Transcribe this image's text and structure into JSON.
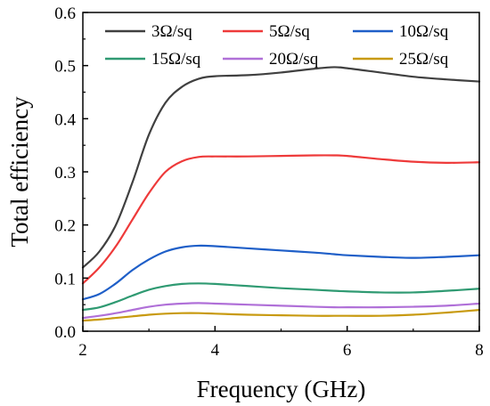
{
  "chart_data": {
    "type": "line",
    "title": "",
    "xlabel": "Frequency (GHz)",
    "ylabel": "Total efficiency",
    "xlim": [
      2,
      8
    ],
    "ylim": [
      0,
      0.6
    ],
    "xticks": [
      2,
      4,
      6,
      8
    ],
    "xtick_labels": [
      "2",
      "4",
      "6",
      "8"
    ],
    "yticks": [
      0.0,
      0.1,
      0.2,
      0.3,
      0.4,
      0.5,
      0.6
    ],
    "ytick_labels": [
      "0.0",
      "0.1",
      "0.2",
      "0.3",
      "0.4",
      "0.5",
      "0.6"
    ],
    "grid": false,
    "legend": "top-inside",
    "x": [
      2.0,
      2.25,
      2.5,
      2.75,
      3.0,
      3.25,
      3.5,
      3.75,
      4.0,
      4.5,
      5.0,
      5.5,
      5.8,
      6.0,
      6.5,
      7.0,
      7.5,
      8.0
    ],
    "series": [
      {
        "name": "3Ω/sq",
        "color": "#404040",
        "values": [
          0.12,
          0.15,
          0.2,
          0.28,
          0.37,
          0.43,
          0.46,
          0.475,
          0.48,
          0.482,
          0.487,
          0.494,
          0.497,
          0.495,
          0.487,
          0.479,
          0.474,
          0.47
        ]
      },
      {
        "name": "5Ω/sq",
        "color": "#ee3a3a",
        "values": [
          0.09,
          0.12,
          0.16,
          0.21,
          0.26,
          0.3,
          0.32,
          0.328,
          0.329,
          0.329,
          0.33,
          0.331,
          0.331,
          0.33,
          0.324,
          0.319,
          0.317,
          0.318
        ]
      },
      {
        "name": "10Ω/sq",
        "color": "#1f5fc8",
        "values": [
          0.06,
          0.07,
          0.09,
          0.115,
          0.135,
          0.15,
          0.158,
          0.161,
          0.16,
          0.156,
          0.152,
          0.148,
          0.145,
          0.143,
          0.14,
          0.138,
          0.14,
          0.143
        ]
      },
      {
        "name": "15Ω/sq",
        "color": "#2f9a72",
        "values": [
          0.04,
          0.045,
          0.055,
          0.067,
          0.078,
          0.085,
          0.089,
          0.09,
          0.089,
          0.085,
          0.081,
          0.078,
          0.076,
          0.075,
          0.073,
          0.073,
          0.076,
          0.08
        ]
      },
      {
        "name": "20Ω/sq",
        "color": "#b070d8",
        "values": [
          0.025,
          0.029,
          0.034,
          0.04,
          0.046,
          0.05,
          0.052,
          0.053,
          0.052,
          0.05,
          0.048,
          0.046,
          0.045,
          0.045,
          0.045,
          0.046,
          0.048,
          0.052
        ]
      },
      {
        "name": "25Ω/sq",
        "color": "#c89a10",
        "values": [
          0.02,
          0.022,
          0.025,
          0.028,
          0.031,
          0.033,
          0.034,
          0.034,
          0.033,
          0.031,
          0.03,
          0.029,
          0.029,
          0.029,
          0.029,
          0.031,
          0.035,
          0.04
        ]
      }
    ]
  }
}
